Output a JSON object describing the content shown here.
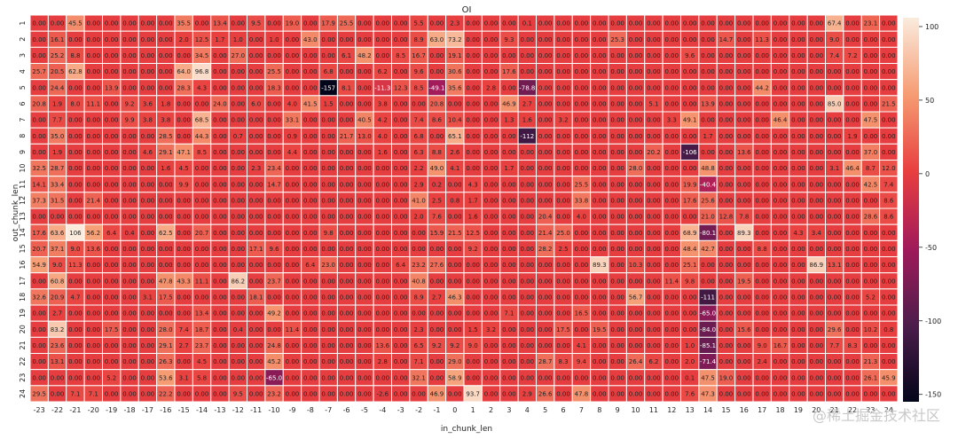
{
  "chart_data": {
    "type": "heatmap",
    "title": "OI",
    "xlabel": "in_chunk_len",
    "ylabel": "out_chunk_len",
    "x_categories": [
      "-23",
      "-22",
      "-21",
      "-20",
      "-19",
      "-18",
      "-17",
      "-16",
      "-15",
      "-14",
      "-13",
      "-12",
      "-11",
      "-10",
      "-9",
      "-8",
      "-7",
      "-6",
      "-5",
      "-4",
      "-3",
      "-2",
      "-1",
      "0",
      "1",
      "2",
      "3",
      "4",
      "5",
      "6",
      "7",
      "8",
      "9",
      "10",
      "11",
      "12",
      "13",
      "14",
      "15",
      "16",
      "17",
      "18",
      "19",
      "20",
      "21",
      "22",
      "23",
      "24"
    ],
    "y_categories": [
      "1",
      "2",
      "3",
      "4",
      "5",
      "6",
      "7",
      "8",
      "9",
      "10",
      "11",
      "12",
      "13",
      "14",
      "15",
      "16",
      "17",
      "18",
      "19",
      "20",
      "21",
      "22",
      "23",
      "24"
    ],
    "base_value": 0,
    "overrides": [
      [
        0,
        2,
        45.5
      ],
      [
        0,
        8,
        35.5
      ],
      [
        0,
        10,
        13.4
      ],
      [
        0,
        12,
        9.5
      ],
      [
        0,
        14,
        19.0
      ],
      [
        0,
        16,
        17.9
      ],
      [
        0,
        17,
        25.5
      ],
      [
        0,
        21,
        5.5
      ],
      [
        0,
        23,
        2.3
      ],
      [
        0,
        27,
        0.08
      ],
      [
        0,
        44,
        67.4
      ],
      [
        0,
        46,
        23.1
      ],
      [
        1,
        1,
        16.1
      ],
      [
        1,
        8,
        2.0
      ],
      [
        1,
        9,
        12.5
      ],
      [
        1,
        10,
        1.7
      ],
      [
        1,
        11,
        1.0
      ],
      [
        1,
        13,
        1.0
      ],
      [
        1,
        15,
        43.0
      ],
      [
        1,
        21,
        8.9
      ],
      [
        1,
        22,
        63.0
      ],
      [
        1,
        23,
        73.2
      ],
      [
        1,
        26,
        9.3
      ],
      [
        1,
        32,
        25.3
      ],
      [
        1,
        38,
        14.7
      ],
      [
        1,
        40,
        11.3
      ],
      [
        1,
        44,
        9.0
      ],
      [
        2,
        1,
        25.2
      ],
      [
        2,
        2,
        8.8
      ],
      [
        2,
        9,
        34.5
      ],
      [
        2,
        11,
        27.0
      ],
      [
        2,
        17,
        6.1
      ],
      [
        2,
        18,
        48.2
      ],
      [
        2,
        20,
        8.5
      ],
      [
        2,
        21,
        16.7
      ],
      [
        2,
        23,
        19.1
      ],
      [
        2,
        36,
        9.6
      ],
      [
        2,
        44,
        7.4
      ],
      [
        2,
        45,
        7.2
      ],
      [
        3,
        0,
        25.7
      ],
      [
        3,
        1,
        20.5
      ],
      [
        3,
        2,
        62.8
      ],
      [
        3,
        8,
        64.0
      ],
      [
        3,
        9,
        96.8
      ],
      [
        3,
        13,
        25.5
      ],
      [
        3,
        16,
        6.8
      ],
      [
        3,
        19,
        6.2
      ],
      [
        3,
        21,
        9.6
      ],
      [
        3,
        23,
        30.6
      ],
      [
        3,
        26,
        17.6
      ],
      [
        4,
        1,
        24.4
      ],
      [
        4,
        4,
        13.9
      ],
      [
        4,
        8,
        28.3
      ],
      [
        4,
        9,
        4.3
      ],
      [
        4,
        13,
        18.3
      ],
      [
        4,
        16,
        -156.8
      ],
      [
        4,
        17,
        8.1
      ],
      [
        4,
        19,
        -11.3
      ],
      [
        4,
        20,
        12.3
      ],
      [
        4,
        21,
        8.5
      ],
      [
        4,
        22,
        -49.1
      ],
      [
        4,
        23,
        35.6
      ],
      [
        4,
        25,
        2.8
      ],
      [
        4,
        27,
        -78.8
      ],
      [
        4,
        40,
        44.2
      ],
      [
        5,
        0,
        20.8
      ],
      [
        5,
        1,
        1.9
      ],
      [
        5,
        2,
        8.0
      ],
      [
        5,
        3,
        11.1
      ],
      [
        5,
        5,
        9.2
      ],
      [
        5,
        6,
        3.6
      ],
      [
        5,
        7,
        1.8
      ],
      [
        5,
        10,
        24.0
      ],
      [
        5,
        12,
        6.0
      ],
      [
        5,
        14,
        4.0
      ],
      [
        5,
        15,
        41.5
      ],
      [
        5,
        16,
        1.5
      ],
      [
        5,
        19,
        3.8
      ],
      [
        5,
        22,
        20.8
      ],
      [
        5,
        26,
        46.9
      ],
      [
        5,
        27,
        2.7
      ],
      [
        5,
        34,
        5.1
      ],
      [
        5,
        37,
        13.9
      ],
      [
        5,
        44,
        85.0
      ],
      [
        5,
        47,
        21.5
      ],
      [
        6,
        1,
        7.7
      ],
      [
        6,
        5,
        9.9
      ],
      [
        6,
        6,
        3.8
      ],
      [
        6,
        7,
        3.8
      ],
      [
        6,
        9,
        68.5
      ],
      [
        6,
        14,
        33.1
      ],
      [
        6,
        18,
        40.5
      ],
      [
        6,
        19,
        4.2
      ],
      [
        6,
        21,
        7.4
      ],
      [
        6,
        22,
        8.6
      ],
      [
        6,
        23,
        10.4
      ],
      [
        6,
        26,
        1.3
      ],
      [
        6,
        27,
        1.6
      ],
      [
        6,
        29,
        3.2
      ],
      [
        6,
        35,
        3.3
      ],
      [
        6,
        36,
        49.1
      ],
      [
        6,
        41,
        46.4
      ],
      [
        6,
        46,
        47.5
      ],
      [
        7,
        1,
        35.0
      ],
      [
        7,
        7,
        28.5
      ],
      [
        7,
        9,
        44.3
      ],
      [
        7,
        11,
        0.7
      ],
      [
        7,
        14,
        0.9
      ],
      [
        7,
        17,
        21.7
      ],
      [
        7,
        18,
        13.0
      ],
      [
        7,
        19,
        4.0
      ],
      [
        7,
        21,
        6.8
      ],
      [
        7,
        23,
        65.1
      ],
      [
        7,
        27,
        -111.8
      ],
      [
        7,
        37,
        1.7
      ],
      [
        7,
        45,
        1.9
      ],
      [
        8,
        1,
        1.9
      ],
      [
        8,
        6,
        4.6
      ],
      [
        8,
        7,
        29.1
      ],
      [
        8,
        8,
        47.1
      ],
      [
        8,
        9,
        8.5
      ],
      [
        8,
        14,
        4.4
      ],
      [
        8,
        19,
        1.6
      ],
      [
        8,
        21,
        6.3
      ],
      [
        8,
        22,
        8.8
      ],
      [
        8,
        23,
        2.6
      ],
      [
        8,
        34,
        20.2
      ],
      [
        8,
        36,
        -106.2
      ],
      [
        8,
        39,
        13.6
      ],
      [
        8,
        46,
        37.0
      ],
      [
        9,
        0,
        32.5
      ],
      [
        9,
        1,
        28.7
      ],
      [
        9,
        7,
        1.6
      ],
      [
        9,
        8,
        4.5
      ],
      [
        9,
        12,
        2.3
      ],
      [
        9,
        13,
        23.4
      ],
      [
        9,
        21,
        2.2
      ],
      [
        9,
        22,
        49.0
      ],
      [
        9,
        23,
        4.1
      ],
      [
        9,
        26,
        1.7
      ],
      [
        9,
        33,
        28.0
      ],
      [
        9,
        37,
        48.8
      ],
      [
        9,
        44,
        3.1
      ],
      [
        9,
        45,
        46.4
      ],
      [
        9,
        46,
        8.7
      ],
      [
        9,
        47,
        12.0
      ],
      [
        10,
        0,
        14.1
      ],
      [
        10,
        1,
        33.4
      ],
      [
        10,
        8,
        9.9
      ],
      [
        10,
        13,
        14.7
      ],
      [
        10,
        21,
        2.9
      ],
      [
        10,
        22,
        0.2
      ],
      [
        10,
        24,
        4.3
      ],
      [
        10,
        30,
        25.5
      ],
      [
        10,
        36,
        19.9
      ],
      [
        10,
        37,
        -40.4
      ],
      [
        10,
        46,
        42.5
      ],
      [
        10,
        47,
        7.4
      ],
      [
        11,
        0,
        37.3
      ],
      [
        11,
        1,
        31.5
      ],
      [
        11,
        3,
        21.4
      ],
      [
        11,
        21,
        41.0
      ],
      [
        11,
        22,
        2.5
      ],
      [
        11,
        23,
        0.8
      ],
      [
        11,
        24,
        1.7
      ],
      [
        11,
        30,
        33.8
      ],
      [
        11,
        36,
        17.6
      ],
      [
        11,
        37,
        25.6
      ],
      [
        11,
        47,
        8.6
      ],
      [
        12,
        21,
        2.0
      ],
      [
        12,
        22,
        7.6
      ],
      [
        12,
        24,
        1.6
      ],
      [
        12,
        28,
        20.4
      ],
      [
        12,
        30,
        4.0
      ],
      [
        12,
        37,
        21.0
      ],
      [
        12,
        38,
        12.8
      ],
      [
        12,
        39,
        7.8
      ],
      [
        12,
        46,
        28.6
      ],
      [
        12,
        47,
        8.6
      ],
      [
        13,
        0,
        17.6
      ],
      [
        13,
        1,
        63.6
      ],
      [
        13,
        2,
        106.0
      ],
      [
        13,
        3,
        56.2
      ],
      [
        13,
        4,
        6.4
      ],
      [
        13,
        5,
        0.4
      ],
      [
        13,
        7,
        62.5
      ],
      [
        13,
        9,
        20.7
      ],
      [
        13,
        16,
        9.8
      ],
      [
        13,
        22,
        15.9
      ],
      [
        13,
        23,
        21.5
      ],
      [
        13,
        24,
        12.5
      ],
      [
        13,
        28,
        21.4
      ],
      [
        13,
        29,
        25.0
      ],
      [
        13,
        36,
        68.9
      ],
      [
        13,
        37,
        -80.1
      ],
      [
        13,
        39,
        89.3
      ],
      [
        13,
        42,
        4.3
      ],
      [
        13,
        43,
        3.4
      ],
      [
        14,
        0,
        20.7
      ],
      [
        14,
        1,
        37.1
      ],
      [
        14,
        2,
        9.0
      ],
      [
        14,
        3,
        13.6
      ],
      [
        14,
        12,
        17.1
      ],
      [
        14,
        13,
        9.6
      ],
      [
        14,
        24,
        9.2
      ],
      [
        14,
        28,
        28.2
      ],
      [
        14,
        29,
        2.5
      ],
      [
        14,
        36,
        48.4
      ],
      [
        14,
        37,
        42.7
      ],
      [
        14,
        40,
        8.8
      ],
      [
        15,
        0,
        54.9
      ],
      [
        15,
        1,
        9.0
      ],
      [
        15,
        2,
        11.3
      ],
      [
        15,
        15,
        6.4
      ],
      [
        15,
        16,
        23.0
      ],
      [
        15,
        20,
        6.4
      ],
      [
        15,
        21,
        23.2
      ],
      [
        15,
        22,
        27.6
      ],
      [
        15,
        31,
        89.3
      ],
      [
        15,
        33,
        10.3
      ],
      [
        15,
        36,
        25.1
      ],
      [
        15,
        43,
        86.9
      ],
      [
        15,
        44,
        13.1
      ],
      [
        16,
        1,
        60.8
      ],
      [
        16,
        7,
        47.8
      ],
      [
        16,
        8,
        43.3
      ],
      [
        16,
        9,
        11.1
      ],
      [
        16,
        11,
        86.2
      ],
      [
        16,
        13,
        23.7
      ],
      [
        16,
        21,
        40.8
      ],
      [
        16,
        35,
        11.4
      ],
      [
        16,
        36,
        9.8
      ],
      [
        16,
        39,
        19.5
      ],
      [
        17,
        0,
        32.6
      ],
      [
        17,
        1,
        20.9
      ],
      [
        17,
        2,
        4.7
      ],
      [
        17,
        6,
        3.1
      ],
      [
        17,
        7,
        17.5
      ],
      [
        17,
        12,
        18.1
      ],
      [
        17,
        21,
        8.9
      ],
      [
        17,
        22,
        2.7
      ],
      [
        17,
        23,
        46.3
      ],
      [
        17,
        33,
        56.7
      ],
      [
        17,
        37,
        -111.0
      ],
      [
        17,
        46,
        5.2
      ],
      [
        18,
        1,
        2.7
      ],
      [
        18,
        9,
        13.4
      ],
      [
        18,
        13,
        49.2
      ],
      [
        18,
        26,
        7.1
      ],
      [
        18,
        30,
        16.5
      ],
      [
        18,
        37,
        -65.0
      ],
      [
        19,
        1,
        83.2
      ],
      [
        19,
        4,
        17.5
      ],
      [
        19,
        7,
        28.0
      ],
      [
        19,
        8,
        7.4
      ],
      [
        19,
        9,
        18.7
      ],
      [
        19,
        11,
        0.4
      ],
      [
        19,
        14,
        11.4
      ],
      [
        19,
        21,
        2.3
      ],
      [
        19,
        24,
        1.5
      ],
      [
        19,
        25,
        3.2
      ],
      [
        19,
        29,
        17.5
      ],
      [
        19,
        31,
        19.5
      ],
      [
        19,
        37,
        -84.0
      ],
      [
        19,
        39,
        15.6
      ],
      [
        19,
        44,
        29.6
      ],
      [
        19,
        46,
        10.2
      ],
      [
        19,
        47,
        0.8
      ],
      [
        20,
        1,
        23.6
      ],
      [
        20,
        7,
        29.1
      ],
      [
        20,
        8,
        2.7
      ],
      [
        20,
        9,
        23.7
      ],
      [
        20,
        13,
        24.8
      ],
      [
        20,
        19,
        13.6
      ],
      [
        20,
        21,
        6.5
      ],
      [
        20,
        22,
        9.2
      ],
      [
        20,
        23,
        9.2
      ],
      [
        20,
        24,
        9.0
      ],
      [
        20,
        30,
        4.1
      ],
      [
        20,
        36,
        1.0
      ],
      [
        20,
        37,
        -85.1
      ],
      [
        20,
        40,
        9.0
      ],
      [
        20,
        41,
        16.7
      ],
      [
        20,
        44,
        7.7
      ],
      [
        20,
        45,
        8.3
      ],
      [
        21,
        1,
        13.1
      ],
      [
        21,
        7,
        26.3
      ],
      [
        21,
        9,
        4.5
      ],
      [
        21,
        13,
        45.2
      ],
      [
        21,
        19,
        2.8
      ],
      [
        21,
        21,
        7.1
      ],
      [
        21,
        23,
        29.0
      ],
      [
        21,
        28,
        28.7
      ],
      [
        21,
        29,
        8.3
      ],
      [
        21,
        30,
        9.4
      ],
      [
        21,
        33,
        26.4
      ],
      [
        21,
        34,
        6.2
      ],
      [
        21,
        36,
        2.0
      ],
      [
        21,
        37,
        -71.4
      ],
      [
        21,
        40,
        2.4
      ],
      [
        21,
        46,
        21.3
      ],
      [
        22,
        4,
        5.2
      ],
      [
        22,
        7,
        53.6
      ],
      [
        22,
        8,
        3.1
      ],
      [
        22,
        9,
        5.8
      ],
      [
        22,
        13,
        -65.0
      ],
      [
        22,
        21,
        32.1
      ],
      [
        22,
        23,
        58.9
      ],
      [
        22,
        36,
        0.1
      ],
      [
        22,
        37,
        47.5
      ],
      [
        22,
        38,
        19.0
      ],
      [
        22,
        46,
        26.1
      ],
      [
        22,
        47,
        45.9
      ],
      [
        23,
        0,
        29.5
      ],
      [
        23,
        2,
        7.1
      ],
      [
        23,
        3,
        7.1
      ],
      [
        23,
        7,
        22.2
      ],
      [
        23,
        11,
        9.5
      ],
      [
        23,
        13,
        23.2
      ],
      [
        23,
        19,
        -2.6
      ],
      [
        23,
        22,
        46.9
      ],
      [
        23,
        24,
        93.7
      ],
      [
        23,
        27,
        2.9
      ],
      [
        23,
        28,
        26.6
      ],
      [
        23,
        30,
        47.8
      ],
      [
        23,
        36,
        7.6
      ],
      [
        23,
        37,
        47.3
      ]
    ],
    "colorbar": {
      "vmin": -155,
      "vmax": 106,
      "ticks": [
        100,
        50,
        0,
        -50,
        -100,
        -150
      ]
    },
    "colormap": [
      "#03051a",
      "#4c1d4b",
      "#a11a5b",
      "#e83f3f",
      "#f69c73",
      "#faebdd"
    ],
    "grid": true,
    "cell_border_color": "#ffffff",
    "legend": "colorbar-right"
  },
  "watermark": "@稀土掘金技术社区"
}
